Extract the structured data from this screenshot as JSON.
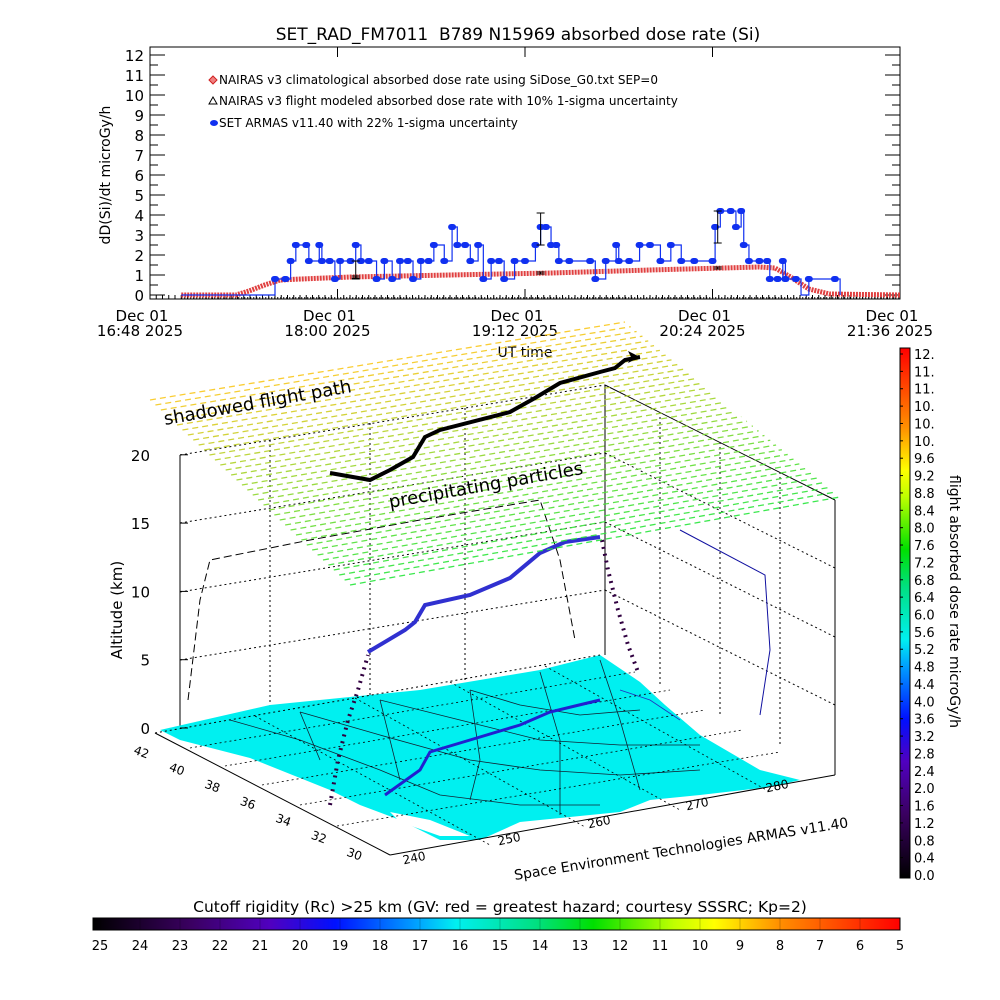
{
  "chart_data": [
    {
      "type": "line",
      "title": "SET_RAD_FM7011  B789 N15969 absorbed dose rate (Si)",
      "xlabel": "UT time",
      "ylabel": "dD(Si)/dt microGy/h",
      "ylim": [
        0,
        12
      ],
      "yticks": [
        "0",
        "1",
        "2",
        "3",
        "4",
        "5",
        "6",
        "7",
        "8",
        "9",
        "10",
        "11",
        "12"
      ],
      "xlim_minutes_ut": [
        1008,
        1296
      ],
      "xticks": [
        {
          "minutes_ut": 1008,
          "date": "Dec 01",
          "label": "16:48 2025"
        },
        {
          "minutes_ut": 1080,
          "date": "Dec 01",
          "label": "18:00 2025"
        },
        {
          "minutes_ut": 1152,
          "date": "Dec 01",
          "label": "19:12 2025"
        },
        {
          "minutes_ut": 1224,
          "date": "Dec 01",
          "label": "20:24 2025"
        },
        {
          "minutes_ut": 1296,
          "date": "Dec 01",
          "label": "21:36 2025"
        }
      ],
      "legend_position": "top-left",
      "series": [
        {
          "name": "NAIRAS v3 climatological absorbed dose rate using SiDose_G0.txt SEP=0",
          "color": "#e03030",
          "marker": "diamond",
          "x": [
            1020,
            1041,
            1046,
            1052,
            1058,
            1066,
            1085,
            1123,
            1162,
            1200,
            1242,
            1248,
            1254,
            1261,
            1269,
            1296
          ],
          "y": [
            0,
            0,
            0.2,
            0.5,
            0.75,
            0.8,
            0.9,
            1.0,
            1.1,
            1.25,
            1.4,
            1.35,
            0.9,
            0.3,
            0.05,
            0
          ]
        },
        {
          "name": "NAIRAS v3 flight modeled absorbed dose rate with 10% 1-sigma uncertainty",
          "color": "#000000",
          "marker": "triangle",
          "x": [
            1020,
            1296
          ],
          "y": [
            0,
            0
          ]
        },
        {
          "name": "SET ARMAS v11.40 with 22% 1-sigma uncertainty",
          "color": "#1030f0",
          "marker": "circle",
          "x": [
            1020,
            1027,
            1035,
            1043,
            1050,
            1056,
            1060,
            1062,
            1064,
            1068,
            1069,
            1073,
            1074,
            1077,
            1079,
            1081,
            1085,
            1087,
            1089,
            1092,
            1095,
            1098,
            1101,
            1104,
            1107,
            1109,
            1112,
            1115,
            1117,
            1121,
            1124,
            1126,
            1129,
            1131,
            1134,
            1136,
            1139,
            1142,
            1144,
            1148,
            1152,
            1156,
            1158,
            1160,
            1162,
            1164,
            1165,
            1169,
            1177,
            1179,
            1183,
            1187,
            1188,
            1192,
            1196,
            1200,
            1204,
            1208,
            1212,
            1217,
            1224,
            1225,
            1227,
            1231,
            1233,
            1235,
            1236,
            1238,
            1242,
            1245,
            1246,
            1249,
            1251,
            1252,
            1256,
            1258,
            1261,
            1271,
            1273
          ],
          "y": [
            0,
            0,
            0,
            0,
            0,
            0.8,
            0.8,
            1.7,
            2.5,
            2.5,
            1.7,
            2.5,
            1.7,
            1.7,
            0.8,
            1.7,
            1.7,
            2.5,
            1.7,
            1.7,
            0.8,
            1.7,
            0.8,
            1.7,
            1.7,
            0.8,
            1.7,
            1.7,
            2.5,
            1.7,
            3.4,
            2.5,
            2.5,
            1.7,
            2.5,
            0.8,
            1.7,
            1.7,
            0.8,
            1.7,
            1.7,
            2.5,
            3.4,
            3.4,
            2.5,
            2.5,
            1.7,
            1.7,
            1.7,
            0.8,
            1.7,
            2.5,
            1.7,
            1.7,
            2.5,
            2.5,
            1.7,
            2.5,
            1.7,
            1.7,
            1.7,
            3.4,
            4.2,
            4.2,
            3.4,
            4.2,
            2.5,
            1.7,
            1.7,
            1.7,
            0.8,
            0.8,
            1.7,
            0.8,
            0.8,
            0,
            0.8,
            0.8,
            0
          ]
        }
      ],
      "error_bars": [
        {
          "series": "SET ARMAS",
          "x": 1087,
          "low": 0.8,
          "high": 1.7
        },
        {
          "series": "SET ARMAS",
          "x": 1158,
          "low": 2.5,
          "high": 4.1
        },
        {
          "series": "SET ARMAS",
          "x": 1226,
          "low": 2.6,
          "high": 4.2
        },
        {
          "series": "NAIRAS",
          "x": 1087,
          "low": 0.85,
          "high": 0.95
        },
        {
          "series": "NAIRAS",
          "x": 1158,
          "low": 1.05,
          "high": 1.15
        },
        {
          "series": "NAIRAS",
          "x": 1226,
          "low": 1.3,
          "high": 1.4
        }
      ]
    },
    {
      "type": "3d-map",
      "zlabel": "Altitude (km)",
      "zticks": [
        "0",
        "5",
        "10",
        "15",
        "20"
      ],
      "lat_ticks": [
        "42",
        "40",
        "38",
        "36",
        "34",
        "32",
        "30"
      ],
      "lon_ticks": [
        "240",
        "250",
        "260",
        "270",
        "280"
      ],
      "annotations": {
        "shadow_label": "shadowed flight path",
        "layer_label": "precipitating particles",
        "credit": "Space Environment Technologies ARMAS v11.40"
      },
      "colorbar_right": {
        "label": "flight absorbed dose rate microGy/h",
        "range": [
          0,
          12
        ],
        "ticks": [
          "12.",
          "11.",
          "11.",
          "10.",
          "10.",
          "10.",
          "9.6",
          "9.2",
          "8.8",
          "8.4",
          "8.0",
          "7.6",
          "7.2",
          "6.8",
          "6.4",
          "6.0",
          "5.6",
          "5.2",
          "4.8",
          "4.4",
          "4.0",
          "3.6",
          "3.2",
          "2.8",
          "2.4",
          "2.0",
          "1.6",
          "1.2",
          "0.8",
          "0.4",
          "0.0"
        ]
      },
      "colorbar_bottom": {
        "label": "Cutoff rigidity (Rc) >25 km (GV: red = greatest hazard; courtesy SSSRC; Kp=2)",
        "range": [
          25,
          5
        ],
        "ticks": [
          "25",
          "24",
          "23",
          "22",
          "21",
          "20",
          "19",
          "18",
          "17",
          "16",
          "15",
          "14",
          "13",
          "12",
          "11",
          "10",
          "9",
          "8",
          "7",
          "6",
          "5"
        ]
      },
      "map_fill_color": "#00f0f0",
      "flight_path_color": "#2020d0"
    }
  ]
}
